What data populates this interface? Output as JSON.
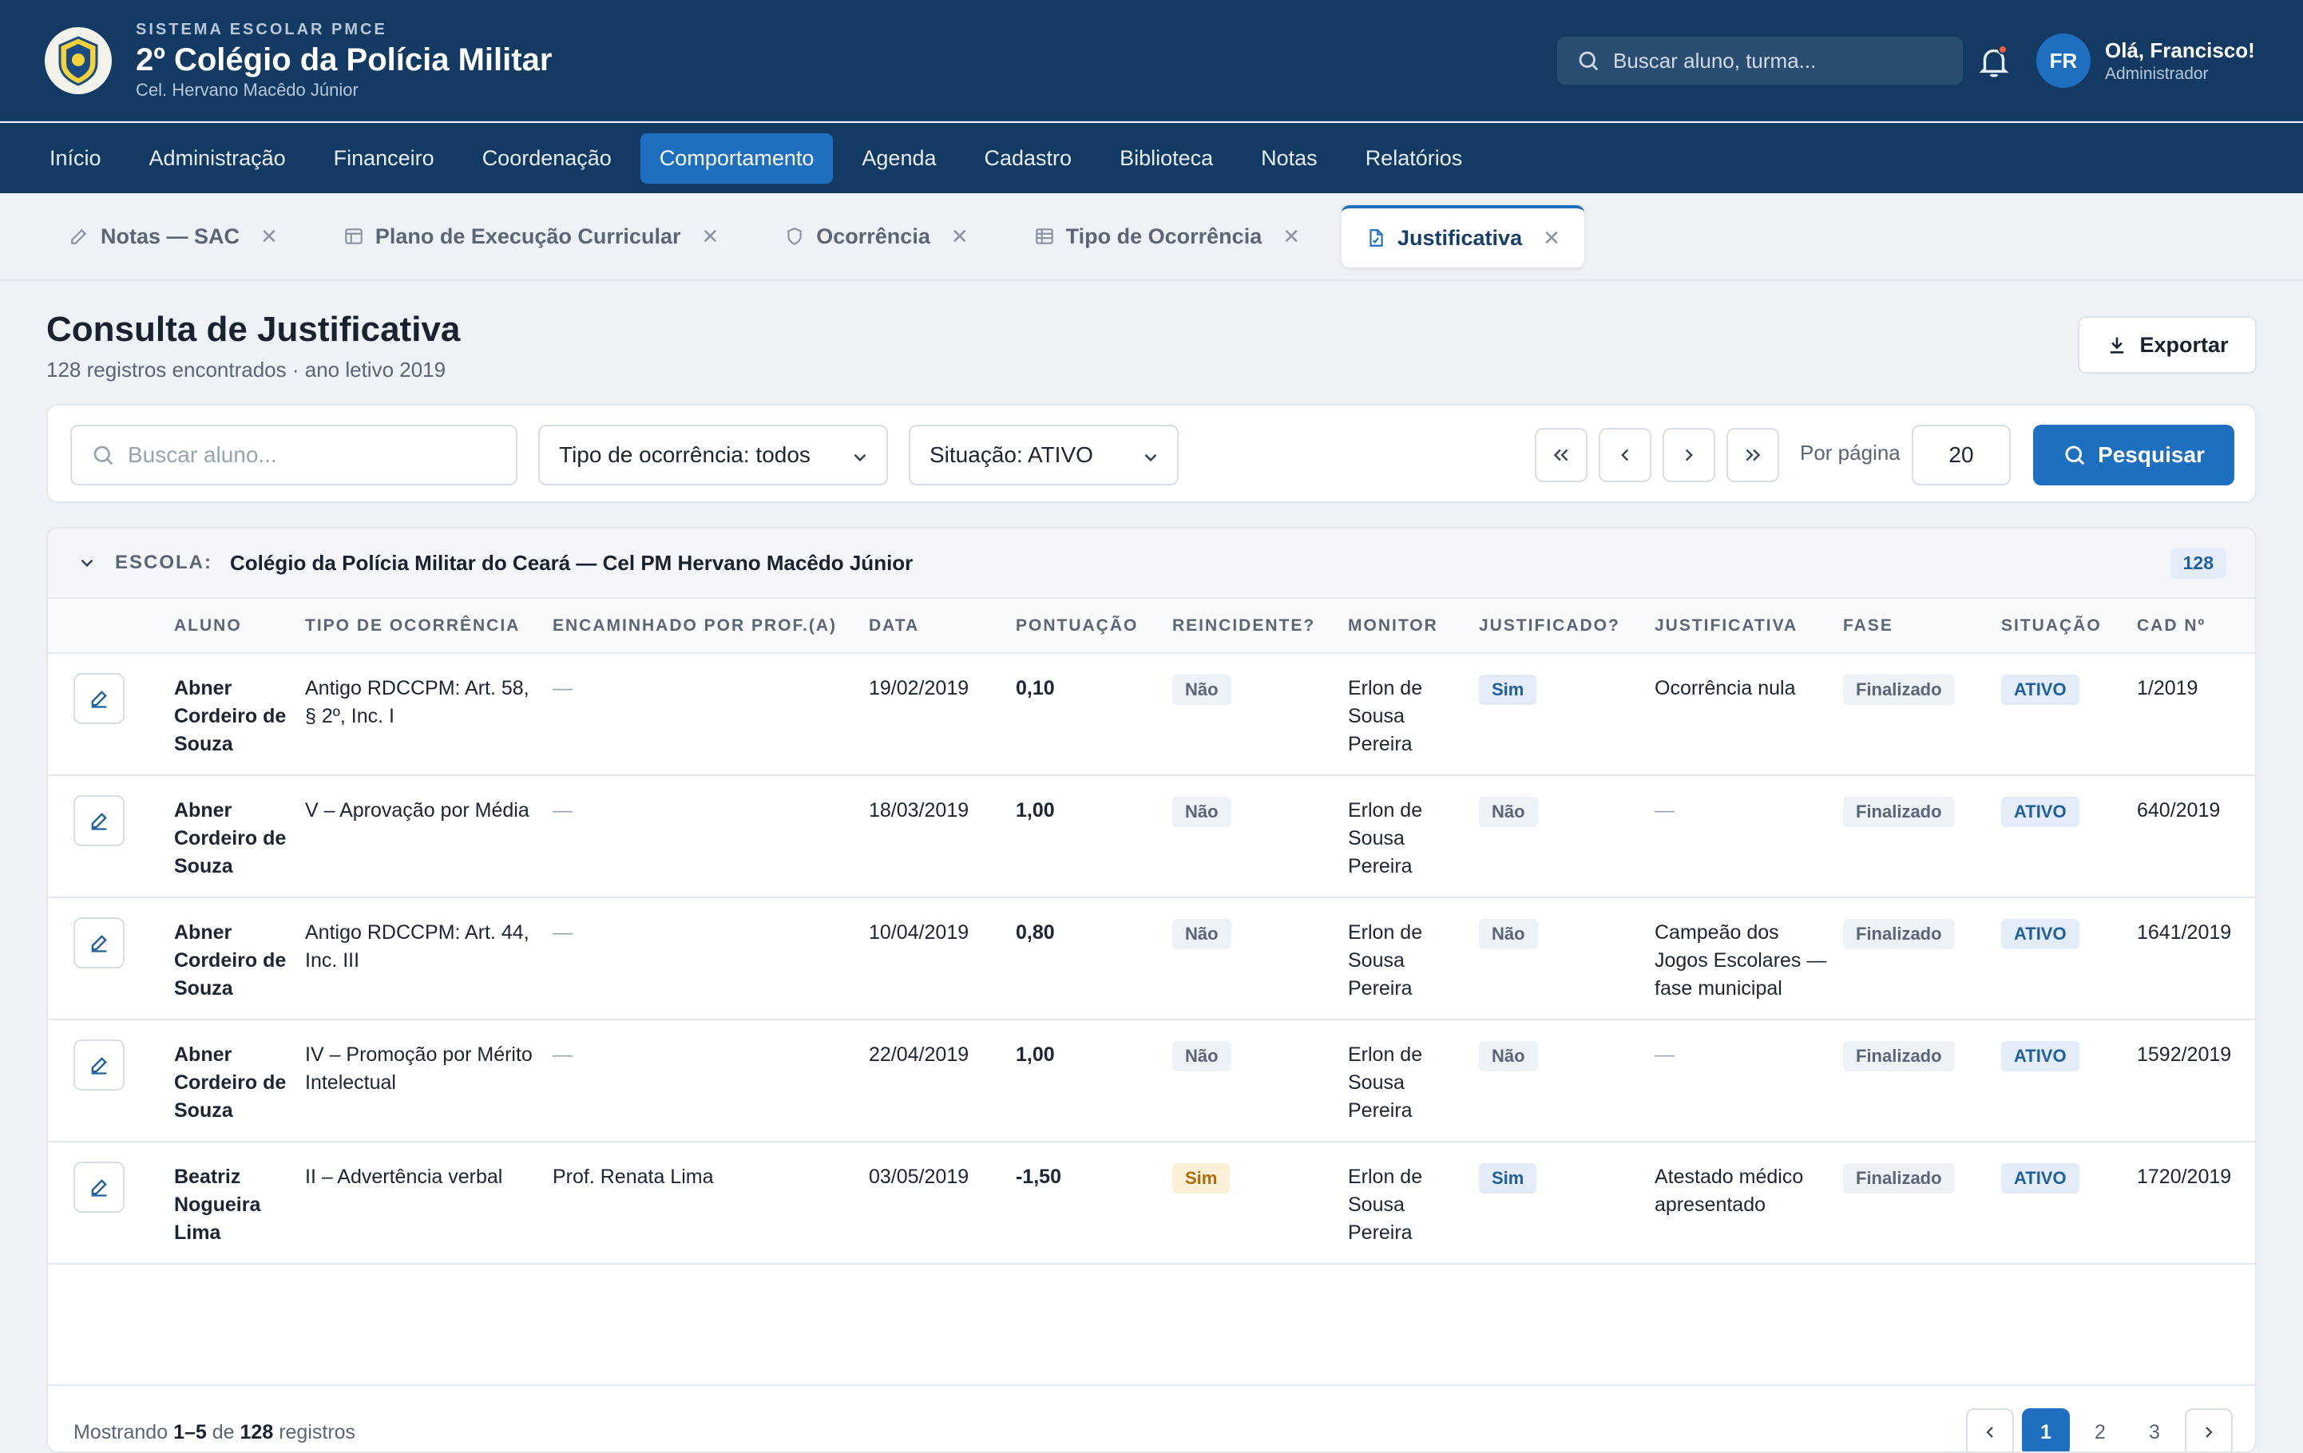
{
  "header": {
    "eyebrow": "SISTEMA ESCOLAR PMCE",
    "title": "2º Colégio da Polícia Militar",
    "subtitle": "Cel. Hervano Macêdo Júnior",
    "search_placeholder": "Buscar aluno, turma...",
    "user_initials": "FR",
    "user_greeting": "Olá, Francisco!",
    "user_role": "Administrador"
  },
  "nav": {
    "items": [
      "Início",
      "Administração",
      "Financeiro",
      "Coordenação",
      "Comportamento",
      "Agenda",
      "Cadastro",
      "Biblioteca",
      "Notas",
      "Relatórios"
    ],
    "active": "Comportamento"
  },
  "tabs": [
    {
      "label": "Notas — SAC",
      "icon": "pencil-icon"
    },
    {
      "label": "Plano de Execução Curricular",
      "icon": "layout-icon"
    },
    {
      "label": "Ocorrência",
      "icon": "shield-icon"
    },
    {
      "label": "Tipo de Ocorrência",
      "icon": "table-icon"
    },
    {
      "label": "Justificativa",
      "icon": "document-icon",
      "active": true
    }
  ],
  "page": {
    "title": "Consulta de Justificativa",
    "subtitle": "128 registros encontrados · ano letivo 2019",
    "export_label": "Exportar"
  },
  "filters": {
    "search_placeholder": "Buscar aluno...",
    "tipo": "Tipo de ocorrência: todos",
    "situacao": "Situação: ATIVO",
    "per_page_label": "Por página",
    "per_page_value": "20",
    "search_button": "Pesquisar"
  },
  "group": {
    "label": "ESCOLA:",
    "school": "Colégio da Polícia Militar do Ceará — Cel PM Hervano Macêdo Júnior",
    "count": "128"
  },
  "table": {
    "columns": [
      "ALUNO",
      "TIPO DE OCORRÊNCIA",
      "ENCAMINHADO POR PROF.(A)",
      "DATA",
      "PONTUAÇÃO",
      "REINCIDENTE?",
      "MONITOR",
      "JUSTIFICADO?",
      "JUSTIFICATIVA",
      "FASE",
      "SITUAÇÃO",
      "CAD Nº"
    ],
    "rows": [
      {
        "aluno": "Abner Cordeiro de Souza",
        "tipo": "Antigo RDCCPM: Art. 58, § 2º, Inc. I",
        "prof": "—",
        "data": "19/02/2019",
        "pontuacao": "0,10",
        "reincidente": "Não",
        "monitor": "Erlon de Sousa Pereira",
        "justificado": "Sim",
        "justificativa": "Ocorrência nula",
        "fase": "Finalizado",
        "situacao": "ATIVO",
        "cad": "1/2019"
      },
      {
        "aluno": "Abner Cordeiro de Souza",
        "tipo": "V – Aprovação por Média",
        "prof": "—",
        "data": "18/03/2019",
        "pontuacao": "1,00",
        "reincidente": "Não",
        "monitor": "Erlon de Sousa Pereira",
        "justificado": "Não",
        "justificativa": "—",
        "fase": "Finalizado",
        "situacao": "ATIVO",
        "cad": "640/2019"
      },
      {
        "aluno": "Abner Cordeiro de Souza",
        "tipo": "Antigo RDCCPM: Art. 44, Inc. III",
        "prof": "—",
        "data": "10/04/2019",
        "pontuacao": "0,80",
        "reincidente": "Não",
        "monitor": "Erlon de Sousa Pereira",
        "justificado": "Não",
        "justificativa": "Campeão dos Jogos Escolares — fase municipal",
        "fase": "Finalizado",
        "situacao": "ATIVO",
        "cad": "1641/2019"
      },
      {
        "aluno": "Abner Cordeiro de Souza",
        "tipo": "IV – Promoção por Mérito Intelectual",
        "prof": "—",
        "data": "22/04/2019",
        "pontuacao": "1,00",
        "reincidente": "Não",
        "monitor": "Erlon de Sousa Pereira",
        "justificado": "Não",
        "justificativa": "—",
        "fase": "Finalizado",
        "situacao": "ATIVO",
        "cad": "1592/2019"
      },
      {
        "aluno": "Beatriz Nogueira Lima",
        "tipo": "II – Advertência verbal",
        "prof": "Prof. Renata Lima",
        "data": "03/05/2019",
        "pontuacao": "-1,50",
        "reincidente": "Sim",
        "monitor": "Erlon de Sousa Pereira",
        "justificado": "Sim",
        "justificativa": "Atestado médico apresentado",
        "fase": "Finalizado",
        "situacao": "ATIVO",
        "cad": "1720/2019"
      }
    ]
  },
  "footer": {
    "prefix": "Mostrando",
    "range": "1–5",
    "middle": "de",
    "total": "128",
    "suffix": "registros",
    "pages": [
      "1",
      "2",
      "3"
    ]
  },
  "colors": {
    "header_bg": "#123a63",
    "accent": "#1f6fc0",
    "badge_amber": "#fdf0d8"
  }
}
